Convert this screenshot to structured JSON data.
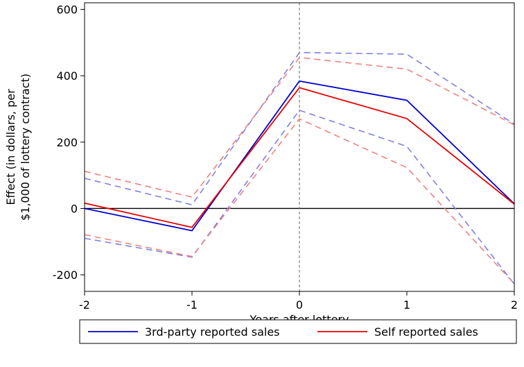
{
  "chart_data": {
    "type": "line",
    "title": "",
    "xlabel": "Years after lottery",
    "ylabel": [
      "Effect (in dollars, per",
      "$1,000 of lottery contract)"
    ],
    "x": [
      -2,
      -1,
      0,
      1,
      2
    ],
    "xlim": [
      -2,
      2
    ],
    "ylim": [
      -250,
      620
    ],
    "xticks": [
      -2,
      -1,
      0,
      1,
      2
    ],
    "yticks": [
      -200,
      0,
      200,
      400,
      600
    ],
    "xtick_labels": [
      "-2",
      "-1",
      "0",
      "1",
      "2"
    ],
    "ytick_labels": [
      "-200",
      "0",
      "200",
      "400",
      "600"
    ],
    "reference_lines": {
      "y": 0,
      "x": 0
    },
    "series": [
      {
        "name": "3rd-party reported sales",
        "role": "estimate",
        "color": "#0000cc",
        "values": [
          0,
          -67,
          384,
          326,
          14
        ]
      },
      {
        "role": "upper-ci",
        "group": "3rd-party reported sales",
        "color": "#7f7fe6",
        "values": [
          91,
          11,
          470,
          465,
          254
        ]
      },
      {
        "role": "lower-ci",
        "group": "3rd-party reported sales",
        "color": "#7f7fe6",
        "values": [
          -90,
          -147,
          296,
          187,
          -228
        ]
      },
      {
        "name": "Self reported sales",
        "role": "estimate",
        "color": "#e60000",
        "values": [
          16,
          -57,
          364,
          271,
          13
        ]
      },
      {
        "role": "upper-ci",
        "group": "Self reported sales",
        "color": "#f08080",
        "values": [
          112,
          34,
          455,
          420,
          252
        ]
      },
      {
        "role": "lower-ci",
        "group": "Self reported sales",
        "color": "#f08080",
        "values": [
          -79,
          -145,
          270,
          123,
          -227
        ]
      }
    ],
    "legend_position": "bottom",
    "grid": false
  }
}
